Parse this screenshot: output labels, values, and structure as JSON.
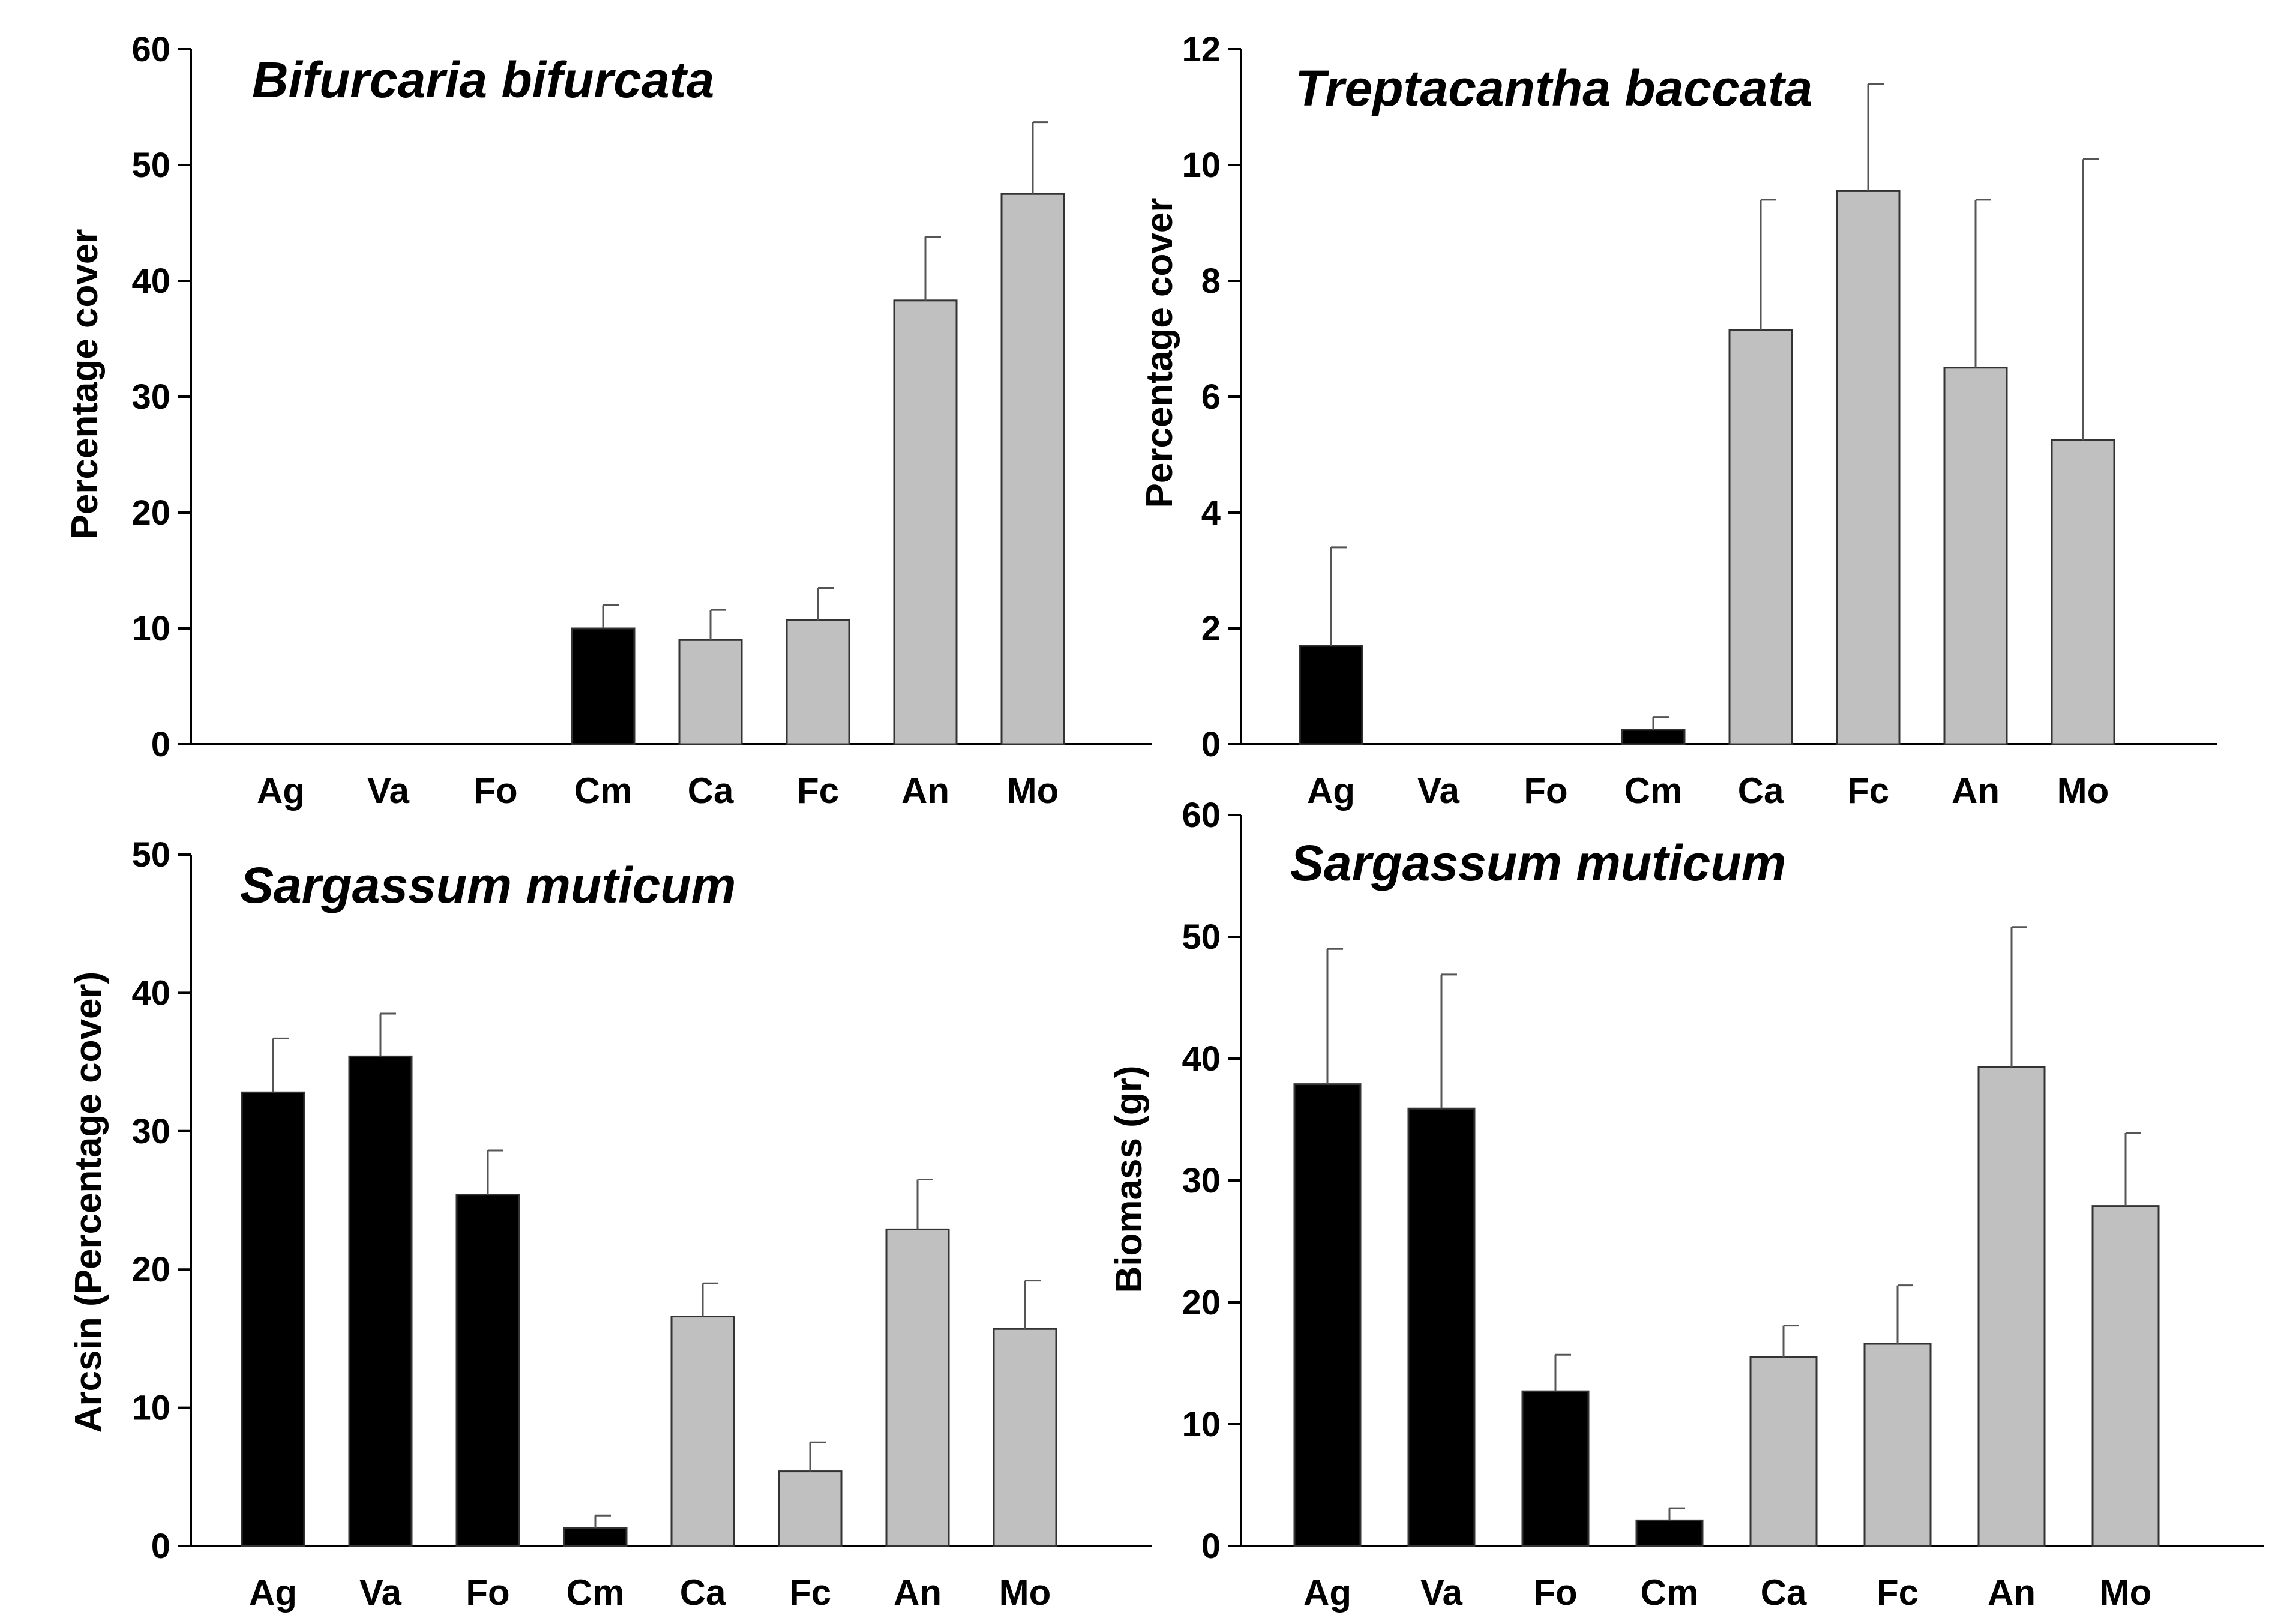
{
  "chart_data": [
    {
      "type": "bar",
      "title": "Bifurcaria bifurcata",
      "ylabel": "Percentage cover",
      "xlabel": "",
      "ylim": [
        0,
        60
      ],
      "yticks": [
        "0",
        "10",
        "20",
        "30",
        "40",
        "50",
        "60"
      ],
      "categories": [
        "Ag",
        "Va",
        "Fo",
        "Cm",
        "Ca",
        "Fc",
        "An",
        "Mo"
      ],
      "values": [
        0,
        0,
        0,
        10,
        9,
        10.7,
        38.3,
        47.5
      ],
      "errors": [
        0,
        0,
        0,
        2,
        2.6,
        2.8,
        5.5,
        6.2
      ],
      "bar_colors": [
        "#000000",
        "#000000",
        "#000000",
        "#000000",
        "#c0c0c0",
        "#c0c0c0",
        "#c0c0c0",
        "#c0c0c0"
      ]
    },
    {
      "type": "bar",
      "title": "Treptacantha baccata",
      "ylabel": "Percentage cover",
      "xlabel": "",
      "ylim": [
        0,
        12
      ],
      "yticks": [
        "0",
        "2",
        "4",
        "6",
        "8",
        "10",
        "12"
      ],
      "categories": [
        "Ag",
        "Va",
        "Fo",
        "Cm",
        "Ca",
        "Fc",
        "An",
        "Mo"
      ],
      "values": [
        1.7,
        0,
        0,
        0.25,
        7.15,
        9.55,
        6.5,
        5.25
      ],
      "errors": [
        1.7,
        0,
        0,
        0.22,
        2.25,
        1.85,
        2.9,
        4.85
      ],
      "bar_colors": [
        "#000000",
        "#000000",
        "#000000",
        "#000000",
        "#c0c0c0",
        "#c0c0c0",
        "#c0c0c0",
        "#c0c0c0"
      ]
    },
    {
      "type": "bar",
      "title": "Sargassum muticum",
      "ylabel": "Arcsin (Percentage cover)",
      "xlabel": "",
      "ylim": [
        0,
        50
      ],
      "yticks": [
        "0",
        "10",
        "20",
        "30",
        "40",
        "50"
      ],
      "categories": [
        "Ag",
        "Va",
        "Fo",
        "Cm",
        "Ca",
        "Fc",
        "An",
        "Mo"
      ],
      "values": [
        32.8,
        35.4,
        25.4,
        1.3,
        16.6,
        5.4,
        22.9,
        15.7
      ],
      "errors": [
        3.9,
        3.1,
        3.2,
        0.9,
        2.4,
        2.1,
        3.6,
        3.5
      ],
      "bar_colors": [
        "#000000",
        "#000000",
        "#000000",
        "#000000",
        "#c0c0c0",
        "#c0c0c0",
        "#c0c0c0",
        "#c0c0c0"
      ]
    },
    {
      "type": "bar",
      "title": "Sargassum muticum",
      "ylabel": "Biomass (gr)",
      "xlabel": "",
      "ylim": [
        0,
        60
      ],
      "yticks": [
        "0",
        "10",
        "20",
        "30",
        "40",
        "50",
        "60"
      ],
      "categories": [
        "Ag",
        "Va",
        "Fo",
        "Cm",
        "Ca",
        "Fc",
        "An",
        "Mo"
      ],
      "values": [
        37.9,
        35.9,
        12.7,
        2.1,
        15.5,
        16.6,
        39.3,
        27.9
      ],
      "errors": [
        11.1,
        11.0,
        3.0,
        1.0,
        2.6,
        4.8,
        11.5,
        6.0
      ],
      "bar_colors": [
        "#000000",
        "#000000",
        "#000000",
        "#000000",
        "#c0c0c0",
        "#c0c0c0",
        "#c0c0c0",
        "#c0c0c0"
      ]
    }
  ]
}
